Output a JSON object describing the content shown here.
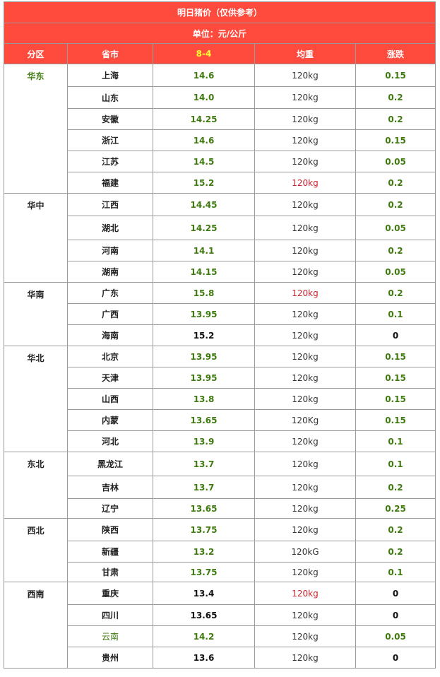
{
  "title": "明日猪价（仅供参考）",
  "unit": "单位：元/公斤",
  "columns": [
    "分区",
    "省市",
    "8-4",
    "均重",
    "涨跌"
  ],
  "regions": [
    {
      "name": "华东",
      "rows": [
        {
          "province": "上海",
          "price": "14.6",
          "weight": "120kg",
          "change": "0.15"
        },
        {
          "province": "山东",
          "price": "14.0",
          "weight": "120kg",
          "change": "0.2"
        },
        {
          "province": "安徽",
          "price": "14.25",
          "weight": "120kg",
          "change": "0.2"
        },
        {
          "province": "浙江",
          "price": "14.6",
          "weight": "120kg",
          "change": "0.15"
        },
        {
          "province": "江苏",
          "price": "14.5",
          "weight": "120kg",
          "change": "0.05"
        },
        {
          "province": "福建",
          "price": "15.2",
          "weight": "120kg",
          "change": "0.2"
        }
      ]
    },
    {
      "name": "华中",
      "rows": [
        {
          "province": "江西",
          "price": "14.45",
          "weight": "120kg",
          "change": "0.2"
        },
        {
          "province": "湖北",
          "price": "14.25",
          "weight": "120kg",
          "change": "0.05"
        },
        {
          "province": "河南",
          "price": "14.1",
          "weight": "120kg",
          "change": "0.2"
        },
        {
          "province": "湖南",
          "price": "14.15",
          "weight": "120kg",
          "change": "0.05"
        }
      ]
    },
    {
      "name": "华南",
      "rows": [
        {
          "province": "广东",
          "price": "15.8",
          "weight": "120kg",
          "change": "0.2"
        },
        {
          "province": "广西",
          "price": "13.95",
          "weight": "120kg",
          "change": "0.1"
        },
        {
          "province": "海南",
          "price": "15.2",
          "weight": "120kg",
          "change": "0"
        }
      ]
    },
    {
      "name": "华北",
      "rows": [
        {
          "province": "北京",
          "price": "13.95",
          "weight": "120kg",
          "change": "0.15"
        },
        {
          "province": "天津",
          "price": "13.95",
          "weight": "120kg",
          "change": "0.15"
        },
        {
          "province": "山西",
          "price": "13.8",
          "weight": "120kg",
          "change": "0.15"
        },
        {
          "province": "内蒙",
          "price": "13.65",
          "weight": "120Kg",
          "change": "0.15"
        },
        {
          "province": "河北",
          "price": "13.9",
          "weight": "120kg",
          "change": "0.1"
        }
      ]
    },
    {
      "name": "东北",
      "rows": [
        {
          "province": "黑龙江",
          "price": "13.7",
          "weight": "120kg",
          "change": "0.1"
        },
        {
          "province": "吉林",
          "price": "13.7",
          "weight": "120kg",
          "change": "0.2"
        },
        {
          "province": "辽宁",
          "price": "13.65",
          "weight": "120kg",
          "change": "0.25"
        }
      ]
    },
    {
      "name": "西北",
      "rows": [
        {
          "province": "陕西",
          "price": "13.75",
          "weight": "120kg",
          "change": "0.2"
        },
        {
          "province": "新疆",
          "price": "13.2",
          "weight": "120kG",
          "change": "0.2"
        },
        {
          "province": "甘肃",
          "price": "13.75",
          "weight": "120kg",
          "change": "0.1"
        }
      ]
    },
    {
      "name": "西南",
      "rows": [
        {
          "province": "重庆",
          "price": "13.4",
          "weight": "120kg",
          "change": "0"
        },
        {
          "province": "四川",
          "price": "13.65",
          "weight": "120kg",
          "change": "0"
        },
        {
          "province": "云南",
          "price": "14.2",
          "weight": "120kg",
          "change": "0.05"
        },
        {
          "province": "贵州",
          "price": "13.6",
          "weight": "120kg",
          "change": "0"
        }
      ]
    }
  ],
  "colors": {
    "header_bg": "#ff4b3e",
    "date_text": "#ffff33",
    "green_text": "#3f7a0f",
    "red_text": "#d0202a"
  }
}
